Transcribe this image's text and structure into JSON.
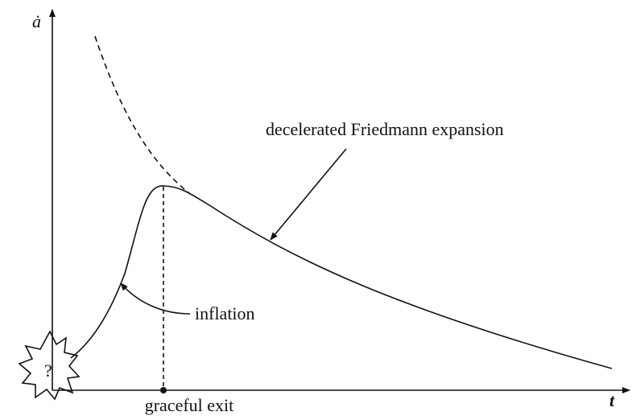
{
  "axes": {
    "y_label": "ȧ",
    "x_label": "t"
  },
  "annotations": {
    "friedmann": "decelerated Friedmann expansion",
    "inflation": "inflation",
    "exit": "graceful exit",
    "origin": "?"
  }
}
